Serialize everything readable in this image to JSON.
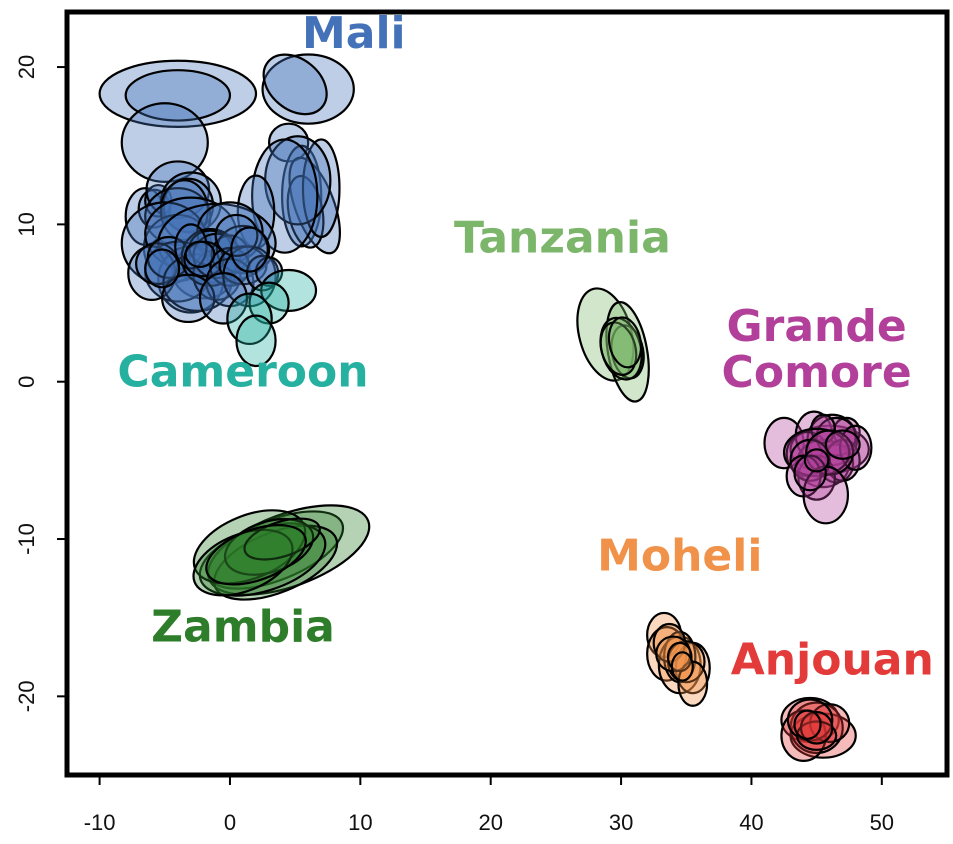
{
  "chart_data": {
    "type": "scatter",
    "title": "",
    "xlabel": "",
    "ylabel": "",
    "xlim": [
      -12.5,
      55
    ],
    "ylim": [
      -25,
      23.5
    ],
    "x_ticks": [
      -10,
      0,
      10,
      20,
      30,
      40,
      50
    ],
    "y_ticks": [
      -20,
      -10,
      0,
      10,
      20
    ],
    "x_tick_labels": [
      "-10",
      "0",
      "10",
      "20",
      "30",
      "40",
      "50"
    ],
    "y_tick_labels": [
      "-20",
      "-10",
      "0",
      "10",
      "20"
    ],
    "grid": false,
    "series": [
      {
        "name": "Mali",
        "color": "#4472b8",
        "label_pos": [
          9.5,
          21.2
        ],
        "ellipses": [
          [
            -4,
            18.3,
            6,
            2.1,
            0
          ],
          [
            -4,
            18.2,
            4,
            1.6,
            0
          ],
          [
            6,
            18.6,
            3.5,
            2.2,
            0
          ],
          [
            5,
            18.9,
            2.7,
            1.6,
            -40
          ],
          [
            -5,
            15.2,
            3.3,
            2.5,
            0
          ],
          [
            4.5,
            15.2,
            1.5,
            1.2,
            0
          ],
          [
            -6.5,
            10.5,
            1.5,
            1.8,
            0
          ],
          [
            -5.8,
            11,
            1.2,
            1.2,
            0
          ],
          [
            -5.5,
            11.5,
            1,
            1,
            0
          ],
          [
            5.5,
            11.8,
            1.5,
            3.2,
            0
          ],
          [
            6.5,
            11.2,
            1.5,
            3.2,
            20
          ],
          [
            5.8,
            10.8,
            1.3,
            2.3,
            10
          ],
          [
            7,
            12.3,
            1.4,
            3.1,
            0
          ],
          [
            5.2,
            12.8,
            2.5,
            2.8,
            0
          ],
          [
            4.2,
            11.8,
            2.5,
            3.6,
            0
          ],
          [
            2,
            10.8,
            1.4,
            2.3,
            0
          ],
          [
            -4,
            12.2,
            2.4,
            1.8,
            0
          ],
          [
            -3,
            11.4,
            2.3,
            1.9,
            0
          ],
          [
            -3.2,
            11.2,
            1.9,
            1.7,
            0
          ],
          [
            -4,
            10.5,
            2.5,
            1.8,
            0
          ],
          [
            -3.5,
            10.9,
            1.8,
            1.9,
            0
          ],
          [
            -4,
            8.5,
            2.6,
            2.1,
            0
          ],
          [
            -5,
            8.8,
            3.3,
            2.6,
            0
          ],
          [
            -3,
            9.4,
            3.5,
            2.3,
            0
          ],
          [
            -1,
            8.8,
            4.5,
            2.5,
            0
          ],
          [
            0,
            9.5,
            2.5,
            1.9,
            0
          ],
          [
            -2,
            7,
            2.4,
            1.7,
            0
          ],
          [
            -3,
            6.5,
            2.5,
            2.1,
            0
          ],
          [
            -4,
            7,
            2.5,
            1.9,
            0
          ],
          [
            -6,
            6.9,
            1.8,
            1.7,
            0
          ],
          [
            -5.6,
            7.5,
            1.6,
            1.3,
            0
          ],
          [
            -4.7,
            7.9,
            1.6,
            1.3,
            0
          ],
          [
            -2.5,
            6.3,
            2.6,
            1.8,
            0
          ],
          [
            -1,
            6.8,
            1.8,
            1.6,
            0
          ],
          [
            -1.5,
            7.9,
            2.2,
            1.8,
            0
          ],
          [
            -1.5,
            8.5,
            1.6,
            1.1,
            0
          ],
          [
            -1,
            8,
            1.8,
            1.4,
            0
          ],
          [
            -3,
            8.6,
            1.2,
            1.4,
            0
          ],
          [
            0,
            8.1,
            1.4,
            1.2,
            0
          ],
          [
            1,
            8.4,
            2,
            1.5,
            0
          ],
          [
            -2,
            7.8,
            1.5,
            1.1,
            0
          ],
          [
            0,
            7.3,
            1.5,
            1.2,
            0
          ],
          [
            0,
            6.3,
            1.8,
            1.5,
            0
          ],
          [
            1,
            7.4,
            1.8,
            1.2,
            0
          ],
          [
            1.5,
            6.7,
            2,
            1.9,
            0
          ],
          [
            2.5,
            6.9,
            1.2,
            1.1,
            0
          ],
          [
            -3.2,
            5.3,
            2,
            1.5,
            0
          ],
          [
            -0.5,
            5.3,
            1.8,
            1.6,
            0
          ],
          [
            3,
            7,
            1,
            0.9,
            0
          ],
          [
            -2.3,
            8.1,
            1.1,
            0.8,
            0
          ],
          [
            0.5,
            9.3,
            1.6,
            1.3,
            0
          ],
          [
            1.5,
            8.4,
            1.4,
            1.4,
            0
          ],
          [
            -5.2,
            7.2,
            1.3,
            1.2,
            0
          ]
        ]
      },
      {
        "name": "Cameroon",
        "color": "#26b0a0",
        "label_pos": [
          1,
          -0.3
        ],
        "ellipses": [
          [
            4.5,
            5.8,
            2.1,
            1.3,
            0
          ],
          [
            3,
            5,
            1.5,
            1.3,
            0
          ],
          [
            1.5,
            4,
            1.7,
            1.6,
            0
          ],
          [
            2,
            2.6,
            1.5,
            1.6,
            0
          ]
        ]
      },
      {
        "name": "Zambia",
        "color": "#2e7d2a",
        "label_pos": [
          1,
          -16.5
        ],
        "ellipses": [
          [
            3.5,
            -10.7,
            5.5,
            1.9,
            22
          ],
          [
            4.5,
            -10.7,
            6.5,
            2.3,
            20
          ],
          [
            3.5,
            -11.5,
            5,
            1.9,
            22
          ],
          [
            2.5,
            -11.3,
            5,
            2,
            18
          ],
          [
            1.5,
            -10.5,
            4.5,
            2,
            22
          ],
          [
            3,
            -10.5,
            3.5,
            1.6,
            18
          ],
          [
            1,
            -11.5,
            4,
            1.8,
            22
          ],
          [
            4,
            -10,
            3,
            1.1,
            18
          ],
          [
            2,
            -11,
            4,
            1.6,
            20
          ]
        ]
      },
      {
        "name": "Tanzania",
        "color": "#7cb66a",
        "label_pos": [
          25.5,
          8.2
        ],
        "ellipses": [
          [
            28.8,
            3,
            2,
            3,
            15
          ],
          [
            30.5,
            1.9,
            1.5,
            3.2,
            10
          ],
          [
            30.5,
            1.9,
            1.2,
            1.7,
            10
          ],
          [
            30,
            2.1,
            1.5,
            2,
            15
          ],
          [
            29.8,
            2.1,
            1.3,
            1.7,
            15
          ],
          [
            30.3,
            2.5,
            1.2,
            1.6,
            10
          ]
        ]
      },
      {
        "name": "Grande Comore",
        "color": "#b2409a",
        "label_pos": [
          45,
          1.2
        ],
        "ellipses": [
          [
            42.5,
            -3.9,
            1.5,
            1.6,
            0
          ],
          [
            46,
            -4.3,
            3,
            1.5,
            0
          ],
          [
            44.8,
            -3.4,
            1.4,
            1.5,
            0
          ],
          [
            46.2,
            -3.7,
            1.9,
            1.6,
            0
          ],
          [
            47.3,
            -3.2,
            1,
            0.9,
            0
          ],
          [
            45.5,
            -5.2,
            2,
            1.5,
            0
          ],
          [
            46.5,
            -5.2,
            1.3,
            1.2,
            0
          ],
          [
            44.3,
            -4.6,
            1.6,
            1.4,
            0
          ],
          [
            46.5,
            -3.5,
            1.5,
            1.2,
            0
          ],
          [
            45.5,
            -3,
            0.9,
            0.9,
            0
          ],
          [
            47,
            -5,
            1.3,
            1.3,
            0
          ],
          [
            48,
            -4.2,
            1.2,
            1.4,
            0
          ],
          [
            45,
            -6.1,
            1.4,
            1.4,
            0
          ],
          [
            45,
            -4.5,
            2.5,
            1.5,
            0
          ],
          [
            44.5,
            -5,
            1.5,
            1.3,
            0
          ],
          [
            46,
            -4.5,
            1.8,
            1.4,
            0
          ],
          [
            44,
            -6,
            1.3,
            1.3,
            0
          ],
          [
            45.7,
            -7.2,
            1.7,
            1.8,
            0
          ],
          [
            44.5,
            -5.8,
            1.2,
            1.1,
            0
          ],
          [
            47,
            -4,
            1.3,
            0.9,
            0
          ],
          [
            45,
            -5,
            0.9,
            0.7,
            0
          ]
        ]
      },
      {
        "name": "Moheli",
        "color": "#f0924a",
        "label_pos": [
          34.5,
          -12
        ],
        "ellipses": [
          [
            33.3,
            -16.1,
            1.3,
            1.4,
            0
          ],
          [
            33.5,
            -17.3,
            1.5,
            1.7,
            0
          ],
          [
            34.5,
            -18,
            1.6,
            1.8,
            0
          ],
          [
            35.5,
            -18.2,
            1.3,
            1.6,
            0
          ],
          [
            34.5,
            -17.5,
            1.2,
            1.6,
            0
          ],
          [
            33.7,
            -16.6,
            1.2,
            1.2,
            0
          ],
          [
            35,
            -17.8,
            1.4,
            1.3,
            0
          ],
          [
            34,
            -17.3,
            1.3,
            1.1,
            0
          ],
          [
            35.5,
            -19.2,
            1.1,
            1.4,
            0
          ],
          [
            34.5,
            -17.5,
            0.9,
            0.9,
            0
          ],
          [
            34.7,
            -18.1,
            0.8,
            0.9,
            0
          ]
        ]
      },
      {
        "name": "Anjouan",
        "color": "#e33a3a",
        "label_pos": [
          46.2,
          -18.6
        ],
        "ellipses": [
          [
            44.5,
            -21.5,
            2.2,
            1.4,
            0
          ],
          [
            45.5,
            -22.5,
            2.5,
            1.4,
            0
          ],
          [
            45,
            -22,
            2,
            1.6,
            0
          ],
          [
            44,
            -22.5,
            1.7,
            1.6,
            0
          ],
          [
            46,
            -21.7,
            1.5,
            1.2,
            0
          ],
          [
            44.5,
            -21.5,
            1.7,
            1.3,
            0
          ],
          [
            45,
            -22.5,
            1.5,
            0.9,
            0
          ],
          [
            45,
            -22,
            1.2,
            1,
            0
          ],
          [
            44.3,
            -21.8,
            1,
            0.9,
            0
          ]
        ]
      }
    ]
  }
}
